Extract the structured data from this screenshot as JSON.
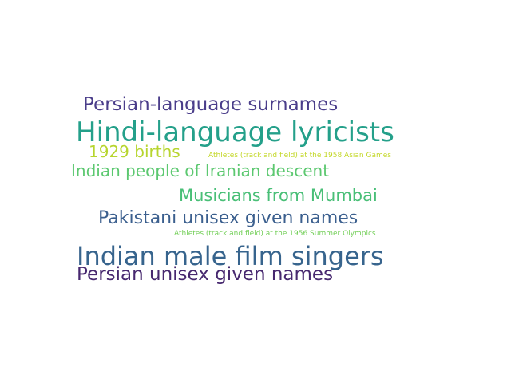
{
  "words": [
    {
      "text": "Persian-language surnames",
      "color": "#4a3d8a"
    },
    {
      "text": "Hindi-language lyricists",
      "color": "#24a08a"
    },
    {
      "text": "1929 births",
      "color": "#b7d52f"
    },
    {
      "text": "Athletes (track and field) at the 1958 Asian Games",
      "color": "#c4d82a"
    },
    {
      "text": "Indian people of Iranian descent",
      "color": "#5cc870"
    },
    {
      "text": "Musicians from Mumbai",
      "color": "#49bf77"
    },
    {
      "text": "Pakistani unisex given names",
      "color": "#3b5f8e"
    },
    {
      "text": "Athletes (track and field) at the 1956 Summer Olympics",
      "color": "#73cf58"
    },
    {
      "text": "Indian male film singers",
      "color": "#37648d"
    },
    {
      "text": "Persian unisex given names",
      "color": "#47286f"
    }
  ]
}
